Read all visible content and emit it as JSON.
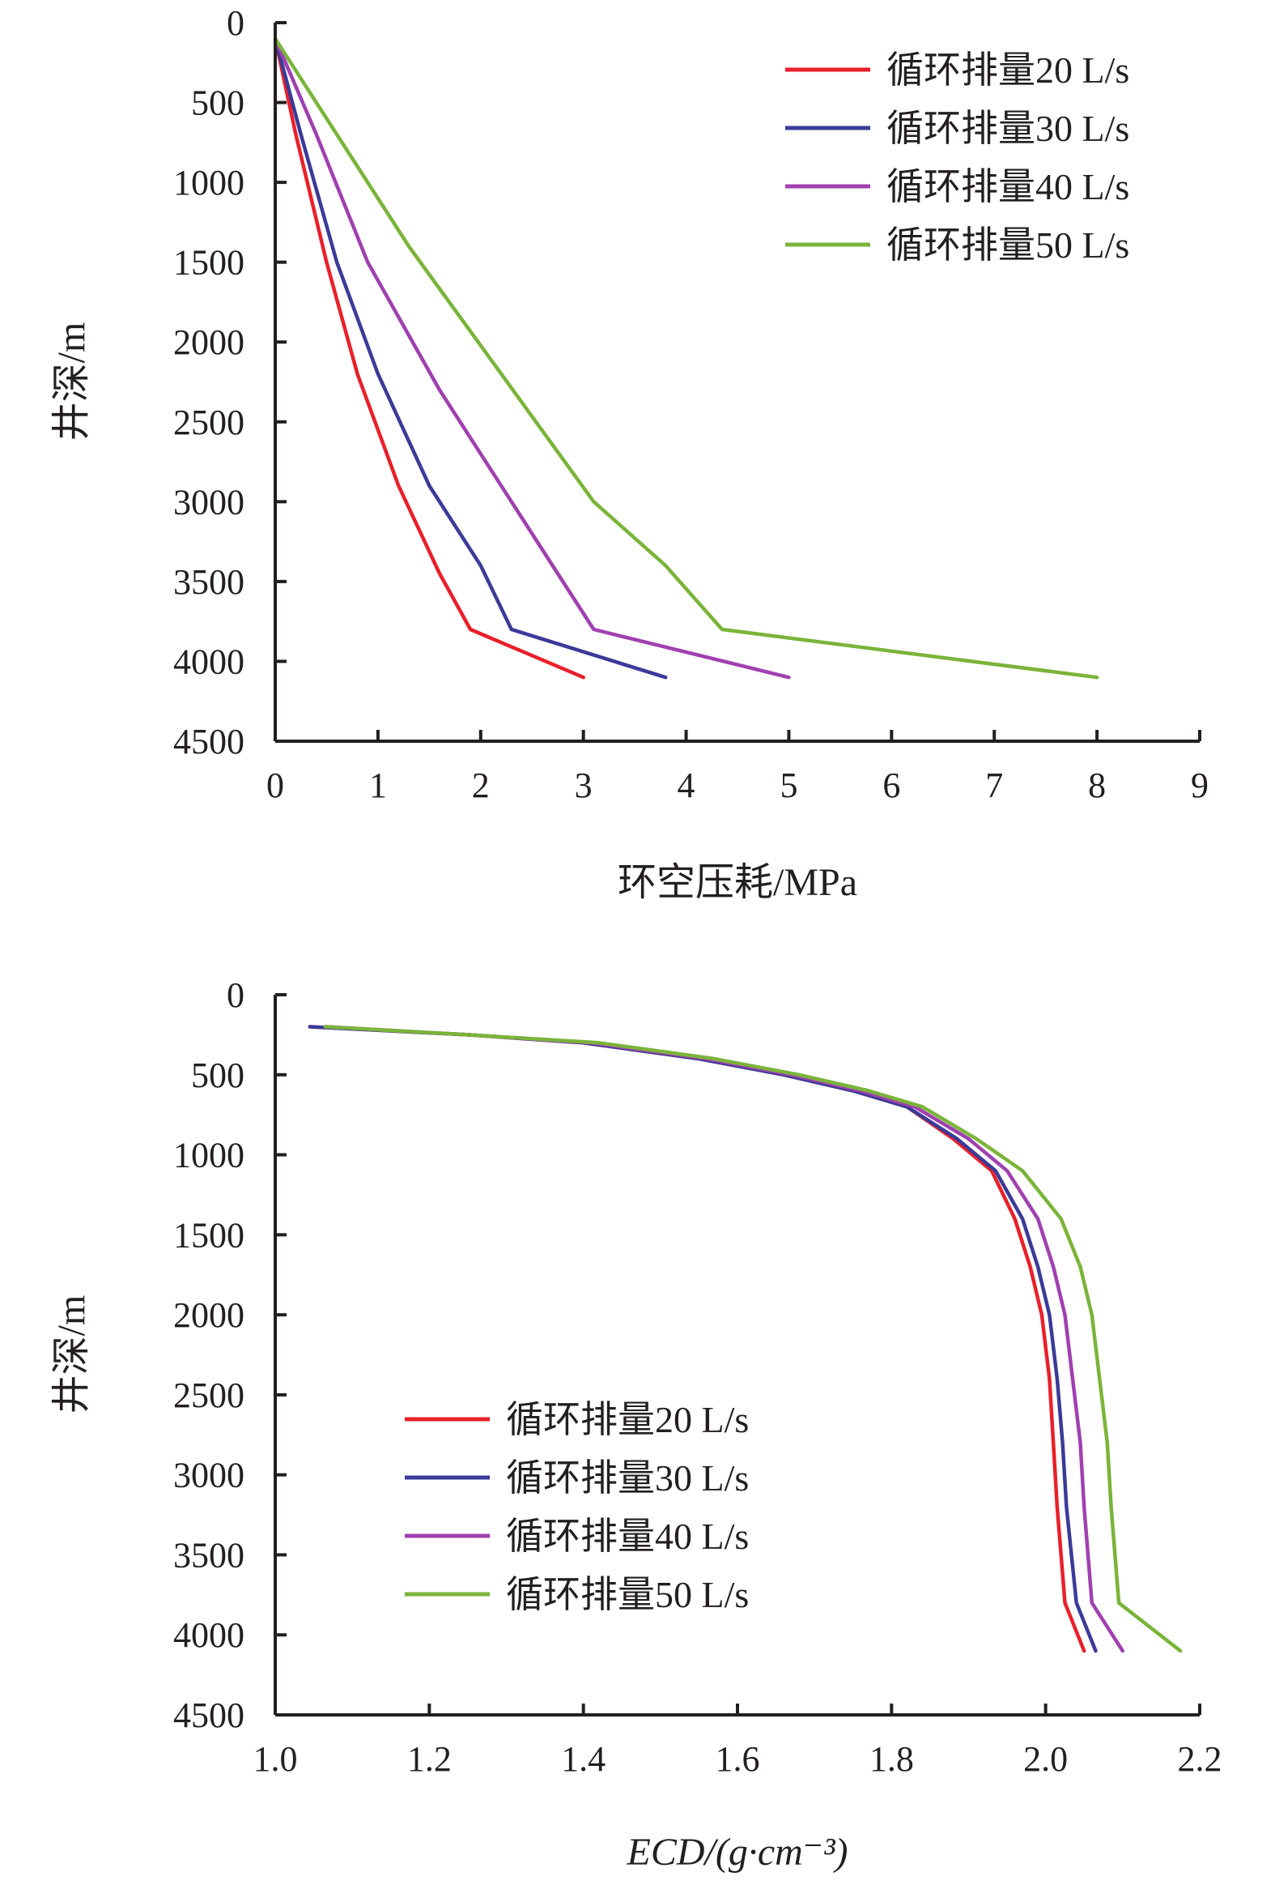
{
  "chart_data": [
    {
      "type": "line",
      "xlabel": "环空压耗/MPa",
      "ylabel": "井深/m",
      "xlim": [
        0,
        9
      ],
      "ylim": [
        0,
        4500
      ],
      "y_inverted": true,
      "xticks": [
        0,
        1,
        2,
        3,
        4,
        5,
        6,
        7,
        8,
        9
      ],
      "yticks": [
        0,
        500,
        1000,
        1500,
        2000,
        2500,
        3000,
        3500,
        4000,
        4500
      ],
      "xtick_labels": [
        "0",
        "1",
        "2",
        "3",
        "4",
        "5",
        "6",
        "7",
        "8",
        "9"
      ],
      "ytick_labels": [
        "0",
        "500",
        "1000",
        "1500",
        "2000",
        "2500",
        "3000",
        "3500",
        "4000",
        "4500"
      ],
      "legend_position": "top-right",
      "series": [
        {
          "name": "循环排量20 L/s",
          "color": "#e8202a",
          "x": [
            0,
            0.2,
            0.5,
            0.8,
            1.2,
            1.6,
            1.9,
            3.0
          ],
          "y": [
            100,
            700,
            1500,
            2200,
            2900,
            3450,
            3800,
            4100
          ]
        },
        {
          "name": "循环排量30 L/s",
          "color": "#3a3b98",
          "x": [
            0,
            0.25,
            0.6,
            1.0,
            1.5,
            2.0,
            2.3,
            3.8
          ],
          "y": [
            100,
            700,
            1500,
            2200,
            2900,
            3400,
            3800,
            4100
          ]
        },
        {
          "name": "循环排量40 L/s",
          "color": "#a040b0",
          "x": [
            0,
            0.4,
            0.9,
            1.6,
            2.3,
            2.8,
            3.1,
            5.0
          ],
          "y": [
            100,
            700,
            1500,
            2300,
            3000,
            3500,
            3800,
            4100
          ]
        },
        {
          "name": "循环排量50 L/s",
          "color": "#7ab43a",
          "x": [
            0,
            0.6,
            1.3,
            2.2,
            3.1,
            3.8,
            4.35,
            8.0
          ],
          "y": [
            100,
            700,
            1400,
            2200,
            3000,
            3400,
            3800,
            4100
          ]
        }
      ]
    },
    {
      "type": "line",
      "xlabel": "ECD/(g·cm⁻³)",
      "ylabel": "井深/m",
      "xlim": [
        1.0,
        2.2
      ],
      "ylim": [
        0,
        4500
      ],
      "y_inverted": true,
      "xticks": [
        1.0,
        1.2,
        1.4,
        1.6,
        1.8,
        2.0,
        2.2
      ],
      "yticks": [
        0,
        500,
        1000,
        1500,
        2000,
        2500,
        3000,
        3500,
        4000,
        4500
      ],
      "xtick_labels": [
        "1.0",
        "1.2",
        "1.4",
        "1.6",
        "1.8",
        "2.0",
        "2.2"
      ],
      "ytick_labels": [
        "0",
        "500",
        "1000",
        "1500",
        "2000",
        "2500",
        "3000",
        "3500",
        "4000",
        "4500"
      ],
      "legend_position": "bottom-left",
      "series": [
        {
          "name": "循环排量20 L/s",
          "color": "#e8202a",
          "x": [
            1.045,
            1.25,
            1.4,
            1.55,
            1.66,
            1.75,
            1.82,
            1.88,
            1.93,
            1.96,
            1.98,
            1.995,
            2.005,
            2.01,
            2.015,
            2.025,
            2.05
          ],
          "y": [
            200,
            250,
            300,
            400,
            500,
            600,
            700,
            900,
            1100,
            1400,
            1700,
            2000,
            2400,
            2800,
            3200,
            3800,
            4100
          ]
        },
        {
          "name": "循环排量30 L/s",
          "color": "#3a3b98",
          "x": [
            1.045,
            1.25,
            1.4,
            1.55,
            1.66,
            1.75,
            1.82,
            1.885,
            1.935,
            1.97,
            1.99,
            2.005,
            2.015,
            2.022,
            2.027,
            2.04,
            2.065
          ],
          "y": [
            200,
            250,
            300,
            400,
            500,
            600,
            700,
            900,
            1100,
            1400,
            1700,
            2000,
            2400,
            2800,
            3200,
            3800,
            4100
          ]
        },
        {
          "name": "循环排量40 L/s",
          "color": "#a040b0",
          "x": [
            1.065,
            1.25,
            1.41,
            1.56,
            1.67,
            1.76,
            1.83,
            1.9,
            1.95,
            1.99,
            2.01,
            2.025,
            2.035,
            2.045,
            2.05,
            2.06,
            2.1
          ],
          "y": [
            200,
            250,
            300,
            400,
            500,
            600,
            700,
            900,
            1100,
            1400,
            1700,
            2000,
            2400,
            2800,
            3200,
            3800,
            4100
          ]
        },
        {
          "name": "循环排量50 L/s",
          "color": "#7ab43a",
          "x": [
            1.065,
            1.25,
            1.42,
            1.57,
            1.68,
            1.77,
            1.84,
            1.91,
            1.97,
            2.02,
            2.045,
            2.06,
            2.07,
            2.08,
            2.085,
            2.095,
            2.175
          ],
          "y": [
            200,
            250,
            300,
            400,
            500,
            600,
            700,
            900,
            1100,
            1400,
            1700,
            2000,
            2400,
            2800,
            3200,
            3800,
            4100
          ]
        }
      ]
    }
  ]
}
